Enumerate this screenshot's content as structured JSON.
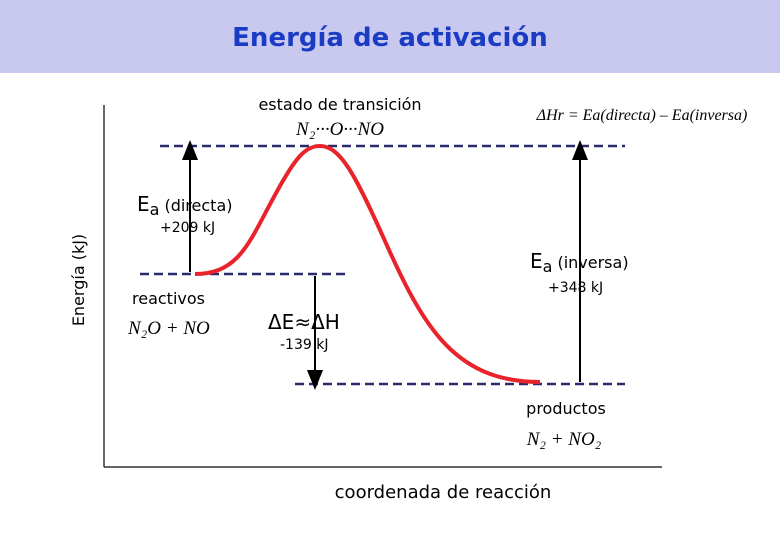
{
  "title": "Energía de activación",
  "axes": {
    "y_label": "Energía (kJ)",
    "x_label": "coordenada de reacción"
  },
  "transition_state": {
    "label": "estado de transición",
    "formula": "N₂···O···NO"
  },
  "equation": "ΔHr = Ea(directa) – Ea(inversa)",
  "ea_forward": {
    "symbol": "E",
    "sub": "a",
    "text": "(directa)",
    "value": "+209 kJ"
  },
  "ea_reverse": {
    "symbol": "E",
    "sub": "a",
    "text": "(inversa)",
    "value": "+348 kJ"
  },
  "reactants": {
    "label": "reactivos",
    "formula": "N₂O + NO"
  },
  "delta": {
    "label": "ΔE≈ΔH",
    "value": "-139 kJ"
  },
  "products": {
    "label": "productos",
    "formula": "N₂ + NO₂"
  }
}
